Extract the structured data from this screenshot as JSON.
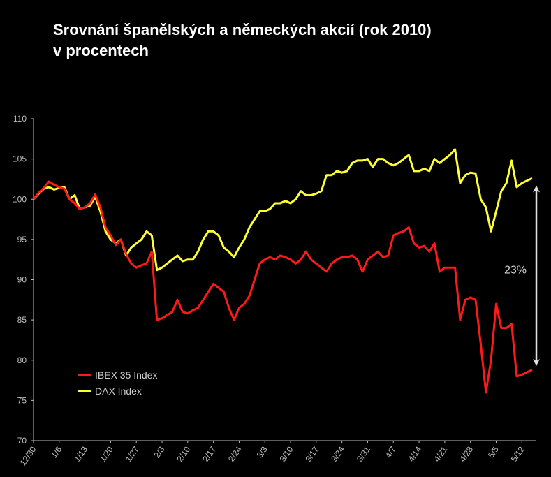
{
  "chart_data": {
    "type": "line",
    "title": "Srovnání španělských a německých akcií (rok 2010)",
    "subtitle": "v procentech",
    "ylim": [
      70,
      110
    ],
    "y_ticks": [
      70,
      75,
      80,
      85,
      90,
      95,
      100,
      105,
      110
    ],
    "x_ticks": [
      "12/30",
      "1/6",
      "1/13",
      "1/20",
      "1/27",
      "2/3",
      "2/10",
      "2/17",
      "2/24",
      "3/3",
      "3/10",
      "3/17",
      "3/24",
      "3/31",
      "4/7",
      "4/14",
      "4/21",
      "4/28",
      "5/5",
      "5/12"
    ],
    "grid": false,
    "legend_position": "bottom-left",
    "annotation": "23%",
    "colors": {
      "ibex": "#ff1a1a",
      "dax": "#ffff33",
      "axis": "#bdbdbd",
      "arrow": "#e0e0e0"
    },
    "series": [
      {
        "name": "IBEX 35 Index",
        "x": [
          "12/30",
          "12/31",
          "1/4",
          "1/5",
          "1/6",
          "1/7",
          "1/8",
          "1/11",
          "1/12",
          "1/13",
          "1/14",
          "1/15",
          "1/18",
          "1/19",
          "1/20",
          "1/21",
          "1/22",
          "1/25",
          "1/26",
          "1/27",
          "1/28",
          "1/29",
          "2/1",
          "2/2",
          "2/3",
          "2/4",
          "2/5",
          "2/8",
          "2/9",
          "2/10",
          "2/11",
          "2/12",
          "2/15",
          "2/16",
          "2/17",
          "2/18",
          "2/19",
          "2/22",
          "2/23",
          "2/24",
          "2/25",
          "2/26",
          "3/1",
          "3/2",
          "3/3",
          "3/4",
          "3/5",
          "3/8",
          "3/9",
          "3/10",
          "3/11",
          "3/12",
          "3/15",
          "3/16",
          "3/17",
          "3/18",
          "3/19",
          "3/22",
          "3/23",
          "3/24",
          "3/25",
          "3/26",
          "3/29",
          "3/30",
          "3/31",
          "4/1",
          "4/5",
          "4/6",
          "4/7",
          "4/8",
          "4/9",
          "4/12",
          "4/13",
          "4/14",
          "4/15",
          "4/16",
          "4/19",
          "4/20",
          "4/21",
          "4/22",
          "4/23",
          "4/26",
          "4/27",
          "4/28",
          "4/29",
          "4/30",
          "5/3",
          "5/4",
          "5/5",
          "5/6",
          "5/7",
          "5/10",
          "5/11",
          "5/12",
          "5/13",
          "5/14",
          "5/17",
          "5/18"
        ],
        "values": [
          100.0,
          100.8,
          101.4,
          102.2,
          101.8,
          101.5,
          101.3,
          100.0,
          99.5,
          98.8,
          99.0,
          99.5,
          100.6,
          99.0,
          96.5,
          95.5,
          94.3,
          95.0,
          93.2,
          92.0,
          91.5,
          91.8,
          92.0,
          93.5,
          85.0,
          85.2,
          85.6,
          86.0,
          87.5,
          86.0,
          85.8,
          86.2,
          86.5,
          87.5,
          88.5,
          89.5,
          89.0,
          88.5,
          86.5,
          85.0,
          86.5,
          87.0,
          88.0,
          90.0,
          92.0,
          92.5,
          92.8,
          92.5,
          93.0,
          92.8,
          92.5,
          92.0,
          92.5,
          93.5,
          92.5,
          92.0,
          91.5,
          91.0,
          92.0,
          92.5,
          92.8,
          92.8,
          93.0,
          92.5,
          91.0,
          92.5,
          93.0,
          93.5,
          92.8,
          93.0,
          95.5,
          95.8,
          96.0,
          96.5,
          94.5,
          94.0,
          94.2,
          93.5,
          94.5,
          91.0,
          91.5,
          91.5,
          91.5,
          85.0,
          87.5,
          87.8,
          87.5,
          82.0,
          76.0,
          80.0,
          87.0,
          84.0,
          84.0,
          84.5,
          78.0,
          78.2,
          78.5,
          78.8
        ]
      },
      {
        "name": "DAX Index",
        "x": [
          "12/30",
          "12/31",
          "1/4",
          "1/5",
          "1/6",
          "1/7",
          "1/8",
          "1/11",
          "1/12",
          "1/13",
          "1/14",
          "1/15",
          "1/18",
          "1/19",
          "1/20",
          "1/21",
          "1/22",
          "1/25",
          "1/26",
          "1/27",
          "1/28",
          "1/29",
          "2/1",
          "2/2",
          "2/3",
          "2/4",
          "2/5",
          "2/8",
          "2/9",
          "2/10",
          "2/11",
          "2/12",
          "2/15",
          "2/16",
          "2/17",
          "2/18",
          "2/19",
          "2/22",
          "2/23",
          "2/24",
          "2/25",
          "2/26",
          "3/1",
          "3/2",
          "3/3",
          "3/4",
          "3/5",
          "3/8",
          "3/9",
          "3/10",
          "3/11",
          "3/12",
          "3/15",
          "3/16",
          "3/17",
          "3/18",
          "3/19",
          "3/22",
          "3/23",
          "3/24",
          "3/25",
          "3/26",
          "3/29",
          "3/30",
          "3/31",
          "4/1",
          "4/5",
          "4/6",
          "4/7",
          "4/8",
          "4/9",
          "4/12",
          "4/13",
          "4/14",
          "4/15",
          "4/16",
          "4/19",
          "4/20",
          "4/21",
          "4/22",
          "4/23",
          "4/26",
          "4/27",
          "4/28",
          "4/29",
          "4/30",
          "5/3",
          "5/4",
          "5/5",
          "5/6",
          "5/7",
          "5/10",
          "5/11",
          "5/12",
          "5/13",
          "5/14",
          "5/17",
          "5/18"
        ],
        "values": [
          100.0,
          100.7,
          101.3,
          101.5,
          101.2,
          101.4,
          101.5,
          100.0,
          100.5,
          98.8,
          99.0,
          99.2,
          100.3,
          98.5,
          96.0,
          95.0,
          94.5,
          95.0,
          93.0,
          94.0,
          94.5,
          95.0,
          96.0,
          95.5,
          91.2,
          91.5,
          92.0,
          92.5,
          93.0,
          92.3,
          92.5,
          92.5,
          93.5,
          95.0,
          96.0,
          96.0,
          95.5,
          94.0,
          93.5,
          92.8,
          94.0,
          95.0,
          96.5,
          97.5,
          98.5,
          98.5,
          98.8,
          99.5,
          99.5,
          99.8,
          99.5,
          100.0,
          101.0,
          100.5,
          100.5,
          100.7,
          101.0,
          103.0,
          103.0,
          103.5,
          103.3,
          103.5,
          104.5,
          104.8,
          104.8,
          105.0,
          104.0,
          105.0,
          105.0,
          104.5,
          104.2,
          104.5,
          105.0,
          105.5,
          103.5,
          103.5,
          103.8,
          103.5,
          105.0,
          104.5,
          105.0,
          105.5,
          106.2,
          102.0,
          103.0,
          103.3,
          103.2,
          100.0,
          99.0,
          96.0,
          98.5,
          101.0,
          102.0,
          104.8,
          101.5,
          102.0,
          102.3,
          102.6
        ]
      }
    ]
  }
}
